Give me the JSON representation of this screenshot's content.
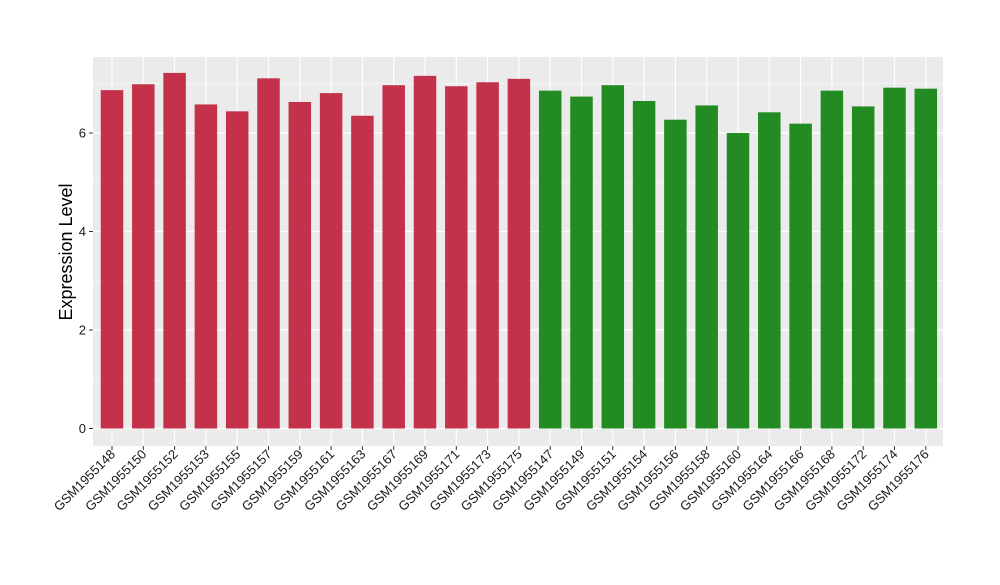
{
  "chart_data": {
    "type": "bar",
    "title": "",
    "xlabel": "",
    "ylabel": "Expression Level",
    "ylim": [
      0,
      7.5
    ],
    "yticks": [
      0,
      2,
      4,
      6
    ],
    "grid": true,
    "legend": "none",
    "categories": [
      "GSM1955148",
      "GSM1955150",
      "GSM1955152",
      "GSM1955153",
      "GSM1955155",
      "GSM1955157",
      "GSM1955159",
      "GSM1955161",
      "GSM1955163",
      "GSM1955167",
      "GSM1955169",
      "GSM1955171",
      "GSM1955173",
      "GSM1955175",
      "GSM1955147",
      "GSM1955149",
      "GSM1955151",
      "GSM1955154",
      "GSM1955156",
      "GSM1955158",
      "GSM1955160",
      "GSM1955164",
      "GSM1955166",
      "GSM1955168",
      "GSM1955172",
      "GSM1955174",
      "GSM1955176"
    ],
    "values": [
      6.87,
      6.99,
      7.22,
      6.58,
      6.44,
      7.11,
      6.63,
      6.81,
      6.35,
      6.97,
      7.16,
      6.95,
      7.03,
      7.1,
      6.86,
      6.74,
      6.97,
      6.65,
      6.27,
      6.56,
      6.0,
      6.42,
      6.19,
      6.86,
      6.54,
      6.92,
      6.9
    ],
    "groups": [
      {
        "color": "#C4314B",
        "count": 14
      },
      {
        "color": "#228B22",
        "count": 13
      }
    ]
  },
  "colors": {
    "panel_background": "#EBEBEB",
    "gridline": "#FFFFFF",
    "axis_text": "#1A1A1A",
    "axis_tick": "#333333"
  }
}
